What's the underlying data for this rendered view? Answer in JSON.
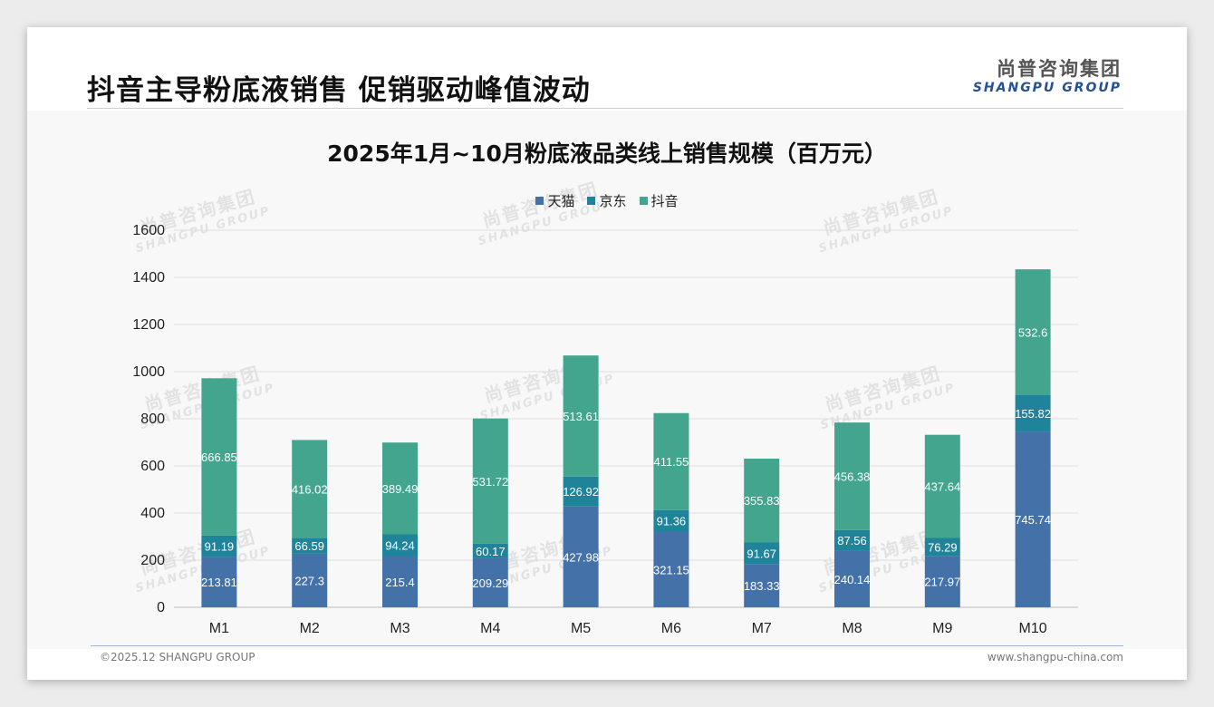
{
  "header": {
    "title": "抖音主导粉底液销售 促销驱动峰值波动",
    "logo_cn": "尚普咨询集团",
    "logo_en": "SHANGPU GROUP"
  },
  "watermark": {
    "cn": "尚普咨询集团",
    "en": "SHANGPU GROUP"
  },
  "footer": {
    "copyright": "©2025.12 SHANGPU GROUP",
    "website": "www.shangpu-china.com"
  },
  "chart_data": {
    "type": "bar",
    "stacked": true,
    "title": "2025年1月~10月粉底液品类线上销售规模（百万元）",
    "xlabel": "",
    "ylabel": "",
    "ylim": [
      0,
      1600
    ],
    "yticks": [
      "0",
      "200",
      "400",
      "600",
      "800",
      "1000",
      "1200",
      "1400",
      "1600"
    ],
    "grid": true,
    "legend_position": "top",
    "categories": [
      "M1",
      "M2",
      "M3",
      "M4",
      "M5",
      "M6",
      "M7",
      "M8",
      "M9",
      "M10"
    ],
    "series": [
      {
        "name": "天猫",
        "color": "#4472a8",
        "values": [
          213.81,
          227.3,
          215.4,
          209.29,
          427.98,
          321.15,
          183.33,
          240.14,
          217.97,
          745.74
        ],
        "labels": [
          "213.81",
          "227.3",
          "215.4",
          "209.29",
          "427.98",
          "321.15",
          "183.33",
          "240.14",
          "217.97",
          "745.74"
        ]
      },
      {
        "name": "京东",
        "color": "#1f8399",
        "values": [
          91.19,
          66.59,
          94.24,
          60.17,
          126.92,
          91.36,
          91.67,
          87.56,
          76.29,
          155.82
        ],
        "labels": [
          "91.19",
          "66.59",
          "94.24",
          "60.17",
          "126.92",
          "91.36",
          "91.67",
          "87.56",
          "76.29",
          "155.82"
        ]
      },
      {
        "name": "抖音",
        "color": "#44a58e",
        "values": [
          666.85,
          416.02,
          389.49,
          531.72,
          513.61,
          411.55,
          355.83,
          456.38,
          437.64,
          532.6
        ],
        "labels": [
          "666.85",
          "416.02",
          "389.49",
          "531.72",
          "513.61",
          "411.55",
          "355.83",
          "456.38",
          "437.64",
          "532.6"
        ]
      }
    ]
  }
}
